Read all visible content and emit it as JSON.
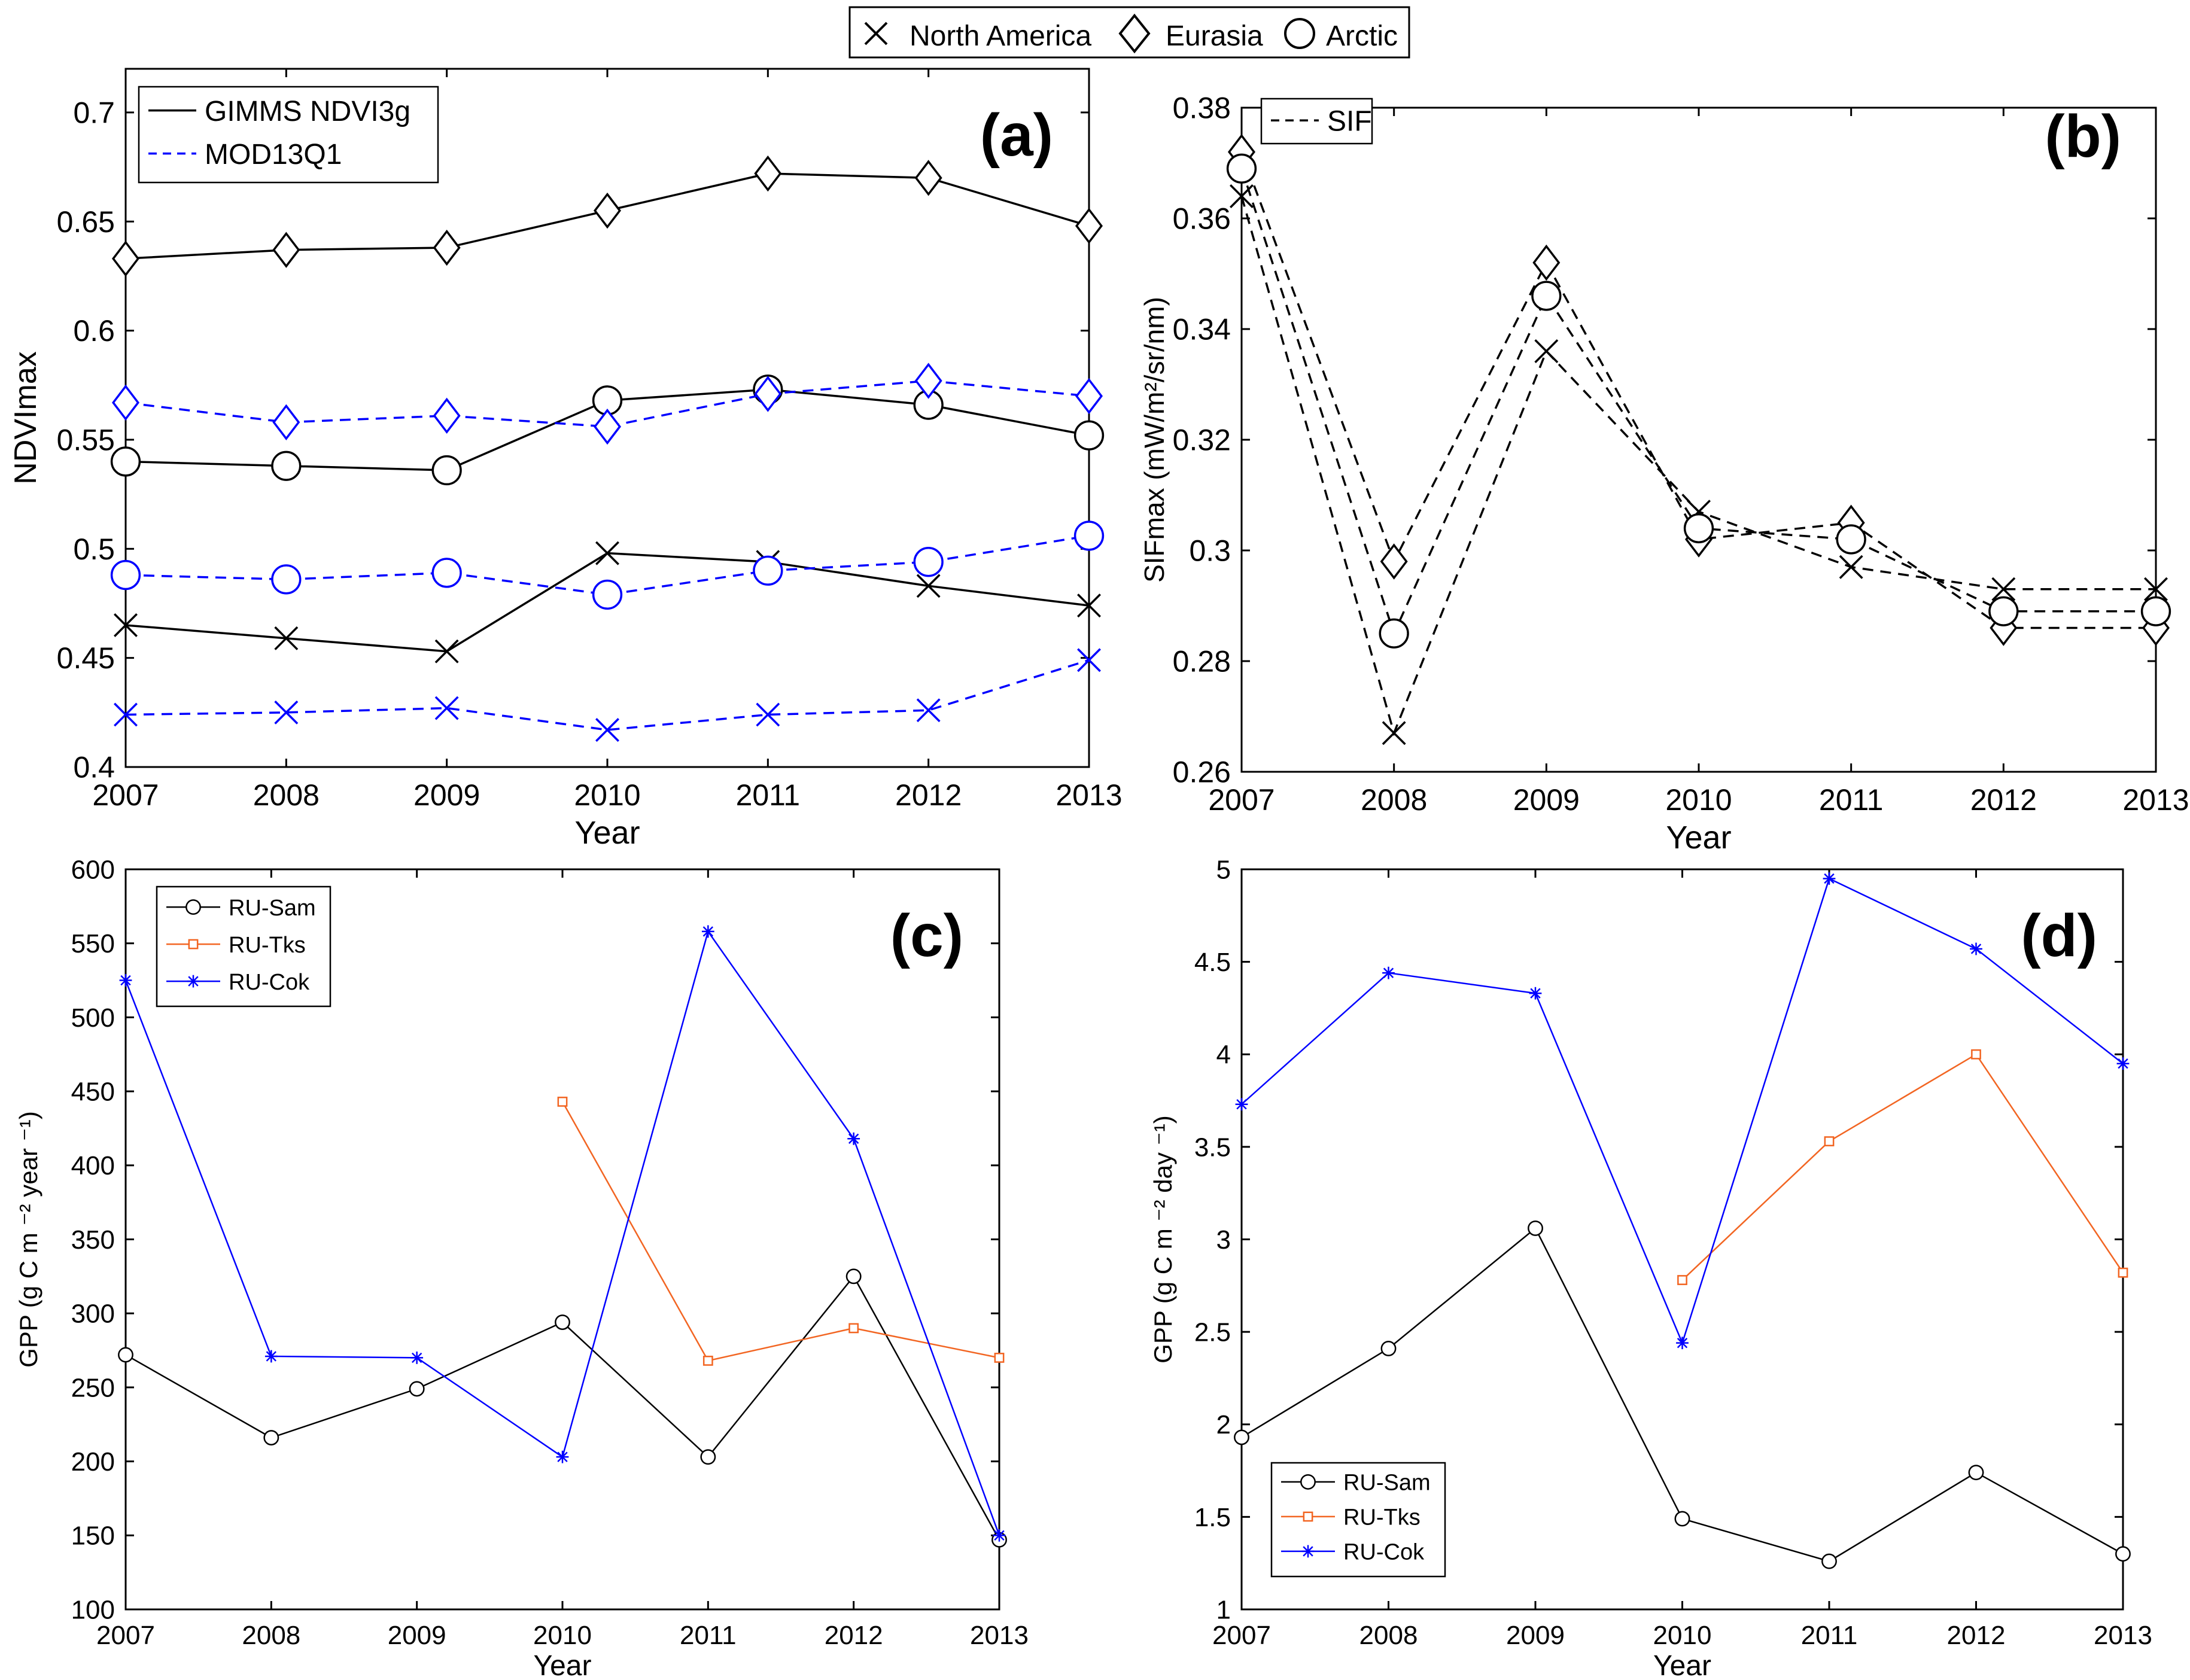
{
  "top_legend": {
    "entries": [
      {
        "label": "North America",
        "marker": "x"
      },
      {
        "label": "Eurasia",
        "marker": "diamond"
      },
      {
        "label": "Arctic",
        "marker": "circle"
      }
    ]
  },
  "colors": {
    "black": "#000000",
    "blue": "#0000ff",
    "orange": "#f26522",
    "frame": "#000000",
    "background": "#ffffff"
  },
  "chart_data": [
    {
      "id": "a",
      "type": "line",
      "panel_label": "(a)",
      "xlabel": "Year",
      "ylabel": "NDVImax",
      "x": [
        2007,
        2008,
        2009,
        2010,
        2011,
        2012,
        2013
      ],
      "xlim": [
        2007,
        2013
      ],
      "ylim": [
        0.4,
        0.72
      ],
      "xticks": [
        "2007",
        "2008",
        "2009",
        "2010",
        "2011",
        "2012",
        "2013"
      ],
      "yticks": [
        "0.4",
        "0.45",
        "0.5",
        "0.55",
        "0.6",
        "0.65",
        "0.7"
      ],
      "ytick_values": [
        0.4,
        0.45,
        0.5,
        0.55,
        0.6,
        0.65,
        0.7
      ],
      "grid": false,
      "legend": {
        "placement": "top-left",
        "entries": [
          {
            "label": "GIMMS NDVI3g",
            "color": "#000000",
            "dash": "solid"
          },
          {
            "label": "MOD13Q1",
            "color": "#0000ff",
            "dash": "dashed"
          }
        ]
      },
      "series": [
        {
          "name": "GIMMS NDVI3g - Eurasia",
          "color": "#000000",
          "dash": "solid",
          "marker": "diamond",
          "values": [
            0.633,
            0.637,
            0.638,
            0.655,
            0.672,
            0.67,
            0.648
          ]
        },
        {
          "name": "GIMMS NDVI3g - Arctic",
          "color": "#000000",
          "dash": "solid",
          "marker": "circle",
          "values": [
            0.54,
            0.538,
            0.536,
            0.568,
            0.573,
            0.566,
            0.552
          ]
        },
        {
          "name": "GIMMS NDVI3g - North America",
          "color": "#000000",
          "dash": "solid",
          "marker": "x",
          "values": [
            0.465,
            0.459,
            0.453,
            0.498,
            0.494,
            0.483,
            0.474
          ]
        },
        {
          "name": "MOD13Q1 - Eurasia",
          "color": "#0000ff",
          "dash": "dashed",
          "marker": "diamond",
          "values": [
            0.567,
            0.558,
            0.561,
            0.556,
            0.571,
            0.577,
            0.57
          ]
        },
        {
          "name": "MOD13Q1 - Arctic",
          "color": "#0000ff",
          "dash": "dashed",
          "marker": "circle",
          "values": [
            0.488,
            0.486,
            0.489,
            0.479,
            0.49,
            0.494,
            0.506
          ]
        },
        {
          "name": "MOD13Q1 - North America",
          "color": "#0000ff",
          "dash": "dashed",
          "marker": "x",
          "values": [
            0.424,
            0.425,
            0.427,
            0.417,
            0.424,
            0.426,
            0.449
          ]
        }
      ]
    },
    {
      "id": "b",
      "type": "line",
      "panel_label": "(b)",
      "xlabel": "Year",
      "ylabel": "SIFmax (mW/m²/sr/nm)",
      "x": [
        2007,
        2008,
        2009,
        2010,
        2011,
        2012,
        2013
      ],
      "xlim": [
        2007,
        2013
      ],
      "ylim": [
        0.26,
        0.38
      ],
      "xticks": [
        "2007",
        "2008",
        "2009",
        "2010",
        "2011",
        "2012",
        "2013"
      ],
      "yticks": [
        "0.26",
        "0.28",
        "0.3",
        "0.32",
        "0.34",
        "0.36",
        "0.38"
      ],
      "ytick_values": [
        0.26,
        0.28,
        0.3,
        0.32,
        0.34,
        0.36,
        0.38
      ],
      "grid": false,
      "legend": {
        "placement": "top-left",
        "entries": [
          {
            "label": "SIF",
            "color": "#000000",
            "dash": "dashed"
          }
        ]
      },
      "series": [
        {
          "name": "SIF - North America",
          "color": "#000000",
          "dash": "dashed",
          "marker": "x",
          "values": [
            0.364,
            0.267,
            0.336,
            0.307,
            0.297,
            0.293,
            0.293
          ]
        },
        {
          "name": "SIF - Eurasia",
          "color": "#000000",
          "dash": "dashed",
          "marker": "diamond",
          "values": [
            0.372,
            0.298,
            0.352,
            0.302,
            0.305,
            0.286,
            0.286
          ]
        },
        {
          "name": "SIF - Arctic",
          "color": "#000000",
          "dash": "dashed",
          "marker": "circle",
          "values": [
            0.369,
            0.285,
            0.346,
            0.304,
            0.302,
            0.289,
            0.289
          ]
        }
      ]
    },
    {
      "id": "c",
      "type": "line",
      "panel_label": "(c)",
      "xlabel": "Year",
      "ylabel": "GPP (g C m ⁻² year ⁻¹)",
      "x": [
        2007,
        2008,
        2009,
        2010,
        2011,
        2012,
        2013
      ],
      "xlim": [
        2007,
        2013
      ],
      "ylim": [
        100,
        600
      ],
      "xticks": [
        "2007",
        "2008",
        "2009",
        "2010",
        "2011",
        "2012",
        "2013"
      ],
      "yticks": [
        "100",
        "150",
        "200",
        "250",
        "300",
        "350",
        "400",
        "450",
        "500",
        "550",
        "600"
      ],
      "ytick_values": [
        100,
        150,
        200,
        250,
        300,
        350,
        400,
        450,
        500,
        550,
        600
      ],
      "grid": false,
      "legend": {
        "placement": "top-left",
        "entries": [
          {
            "label": "RU-Sam",
            "color": "#000000",
            "marker": "circle"
          },
          {
            "label": "RU-Tks",
            "color": "#f26522",
            "marker": "square"
          },
          {
            "label": "RU-Cok",
            "color": "#0000ff",
            "marker": "star"
          }
        ]
      },
      "series": [
        {
          "name": "RU-Sam",
          "color": "#000000",
          "dash": "solid",
          "marker": "circle",
          "values": [
            272,
            216,
            249,
            294,
            203,
            325,
            147
          ]
        },
        {
          "name": "RU-Tks",
          "color": "#f26522",
          "dash": "solid",
          "marker": "square",
          "values": [
            null,
            null,
            null,
            443,
            268,
            290,
            270
          ]
        },
        {
          "name": "RU-Cok",
          "color": "#0000ff",
          "dash": "solid",
          "marker": "star",
          "values": [
            525,
            271,
            270,
            203,
            558,
            418,
            150
          ]
        }
      ]
    },
    {
      "id": "d",
      "type": "line",
      "panel_label": "(d)",
      "xlabel": "Year",
      "ylabel": "GPP (g C m ⁻² day ⁻¹)",
      "x": [
        2007,
        2008,
        2009,
        2010,
        2011,
        2012,
        2013
      ],
      "xlim": [
        2007,
        2013
      ],
      "ylim": [
        1,
        5
      ],
      "xticks": [
        "2007",
        "2008",
        "2009",
        "2010",
        "2011",
        "2012",
        "2013"
      ],
      "yticks": [
        "1",
        "1.5",
        "2",
        "2.5",
        "3",
        "3.5",
        "4",
        "4.5",
        "5"
      ],
      "ytick_values": [
        1,
        1.5,
        2,
        2.5,
        3,
        3.5,
        4,
        4.5,
        5
      ],
      "grid": false,
      "legend": {
        "placement": "bottom-left",
        "entries": [
          {
            "label": "RU-Sam",
            "color": "#000000",
            "marker": "circle"
          },
          {
            "label": "RU-Tks",
            "color": "#f26522",
            "marker": "square"
          },
          {
            "label": "RU-Cok",
            "color": "#0000ff",
            "marker": "star"
          }
        ]
      },
      "series": [
        {
          "name": "RU-Sam",
          "color": "#000000",
          "dash": "solid",
          "marker": "circle",
          "values": [
            1.93,
            2.41,
            3.06,
            1.49,
            1.26,
            1.74,
            1.3
          ]
        },
        {
          "name": "RU-Tks",
          "color": "#f26522",
          "dash": "solid",
          "marker": "square",
          "values": [
            null,
            null,
            null,
            2.78,
            3.53,
            4.0,
            2.82
          ]
        },
        {
          "name": "RU-Cok",
          "color": "#0000ff",
          "dash": "solid",
          "marker": "star",
          "values": [
            3.73,
            4.44,
            4.33,
            2.44,
            4.95,
            4.57,
            3.95
          ]
        }
      ]
    }
  ]
}
